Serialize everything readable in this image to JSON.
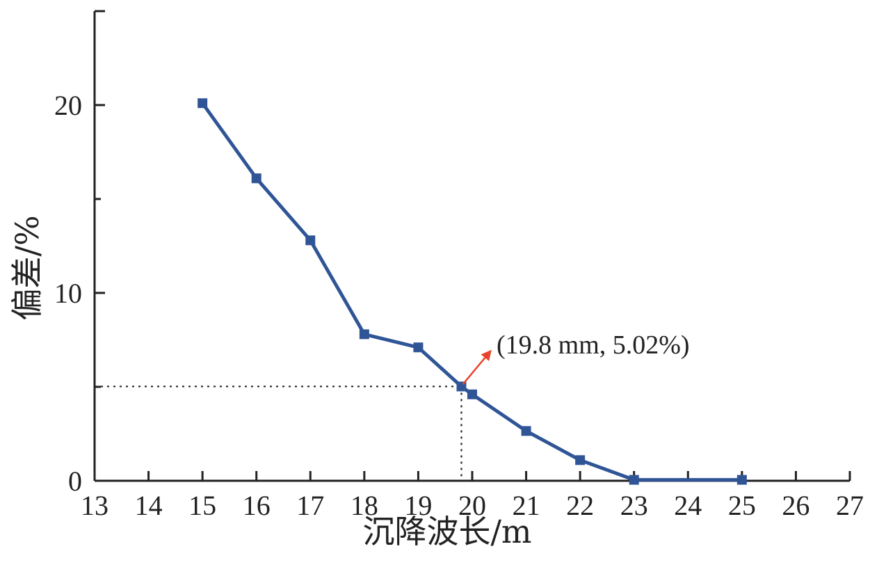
{
  "chart_data": {
    "type": "line",
    "title": "",
    "xlabel": "沉降波长/m",
    "ylabel": "偏差/%",
    "xlim": [
      13,
      27
    ],
    "ylim": [
      0,
      25
    ],
    "x_ticks": [
      "13",
      "14",
      "15",
      "16",
      "17",
      "18",
      "19",
      "20",
      "21",
      "22",
      "23",
      "24",
      "25",
      "26",
      "27"
    ],
    "y_ticks": [
      "0",
      "10",
      "20"
    ],
    "grid": false,
    "legend": "none",
    "series": [
      {
        "color": "#2f5597",
        "x": [
          15,
          16,
          17,
          18,
          19,
          19.8,
          20,
          21,
          22,
          23,
          25
        ],
        "y": [
          20.1,
          16.1,
          12.8,
          7.8,
          7.1,
          5.02,
          4.6,
          2.65,
          1.1,
          0.05,
          0.05
        ]
      }
    ],
    "annotation": {
      "text": "(19.8 mm, 5.02%)",
      "x": 19.8,
      "y": 5.02,
      "arrow_color": "#e8432b"
    }
  }
}
